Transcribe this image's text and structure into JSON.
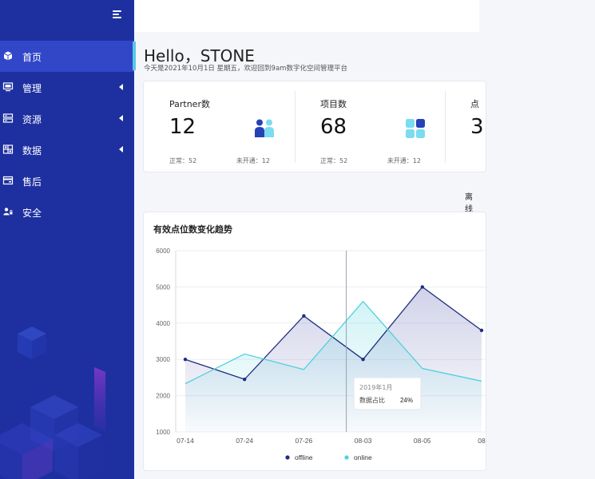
{
  "sidebar": {
    "items": [
      {
        "label": "首页",
        "icon": "cube-icon",
        "active": true,
        "has_arrow": false
      },
      {
        "label": "管理",
        "icon": "monitor-icon",
        "active": false,
        "has_arrow": true
      },
      {
        "label": "资源",
        "icon": "server-icon",
        "active": false,
        "has_arrow": true
      },
      {
        "label": "数据",
        "icon": "grid-icon",
        "active": false,
        "has_arrow": true
      },
      {
        "label": "售后",
        "icon": "wallet-icon",
        "active": false,
        "has_arrow": false
      },
      {
        "label": "安全",
        "icon": "user-lock-icon",
        "active": false,
        "has_arrow": false
      }
    ]
  },
  "header": {
    "greeting": "Hello，STONE",
    "subtitle": "今天是2021年10月1日 星期五，欢迎回到9am数字化空间管理平台"
  },
  "stats": [
    {
      "title": "Partner数",
      "value": "12",
      "normal": "正常：52",
      "closed": "未开通：12",
      "icon": "users-icon"
    },
    {
      "title": "项目数",
      "value": "68",
      "normal": "正常：52",
      "closed": "未开通：12",
      "icon": "apps-icon"
    },
    {
      "title": "点",
      "value": "3",
      "normal": "",
      "closed": "",
      "icon": ""
    }
  ],
  "filter": {
    "label": "离线"
  },
  "colors": {
    "sidebar": "#1e30a0",
    "active": "#3247c8",
    "offline": "#1e2d7d",
    "online": "#4fd1dc"
  },
  "chart_data": {
    "type": "area",
    "title": "有效点位数变化趋势",
    "x": [
      "07-14",
      "07-24",
      "07-26",
      "08-03",
      "08-05",
      "08"
    ],
    "ylim": [
      1000,
      6000
    ],
    "yticks": [
      1000,
      2000,
      3000,
      4000,
      5000,
      6000
    ],
    "series": [
      {
        "name": "offline",
        "values": [
          3000,
          2450,
          4200,
          3000,
          5000,
          3800
        ]
      },
      {
        "name": "online",
        "values": [
          2330,
          3150,
          2720,
          4600,
          2750,
          2400
        ]
      }
    ],
    "tooltip": {
      "title": "2019年1月",
      "label": "数据占比",
      "value": "24%"
    },
    "legend_position": "bottom",
    "grid": true
  }
}
